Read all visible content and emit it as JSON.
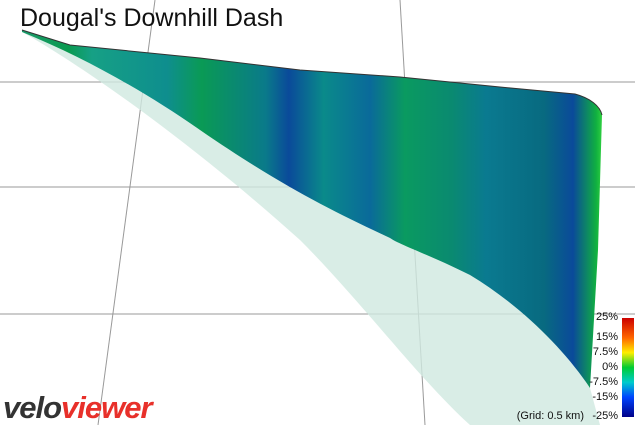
{
  "title": "Dougal's Downhill Dash",
  "logo": {
    "part1": "velo",
    "part2": "viewer"
  },
  "grid_note": "(Grid: 0.5 km)",
  "color_scale": {
    "labels": [
      "25%",
      "15%",
      "7.5%",
      "0%",
      "-7.5%",
      "-15%",
      "-25%"
    ]
  }
}
